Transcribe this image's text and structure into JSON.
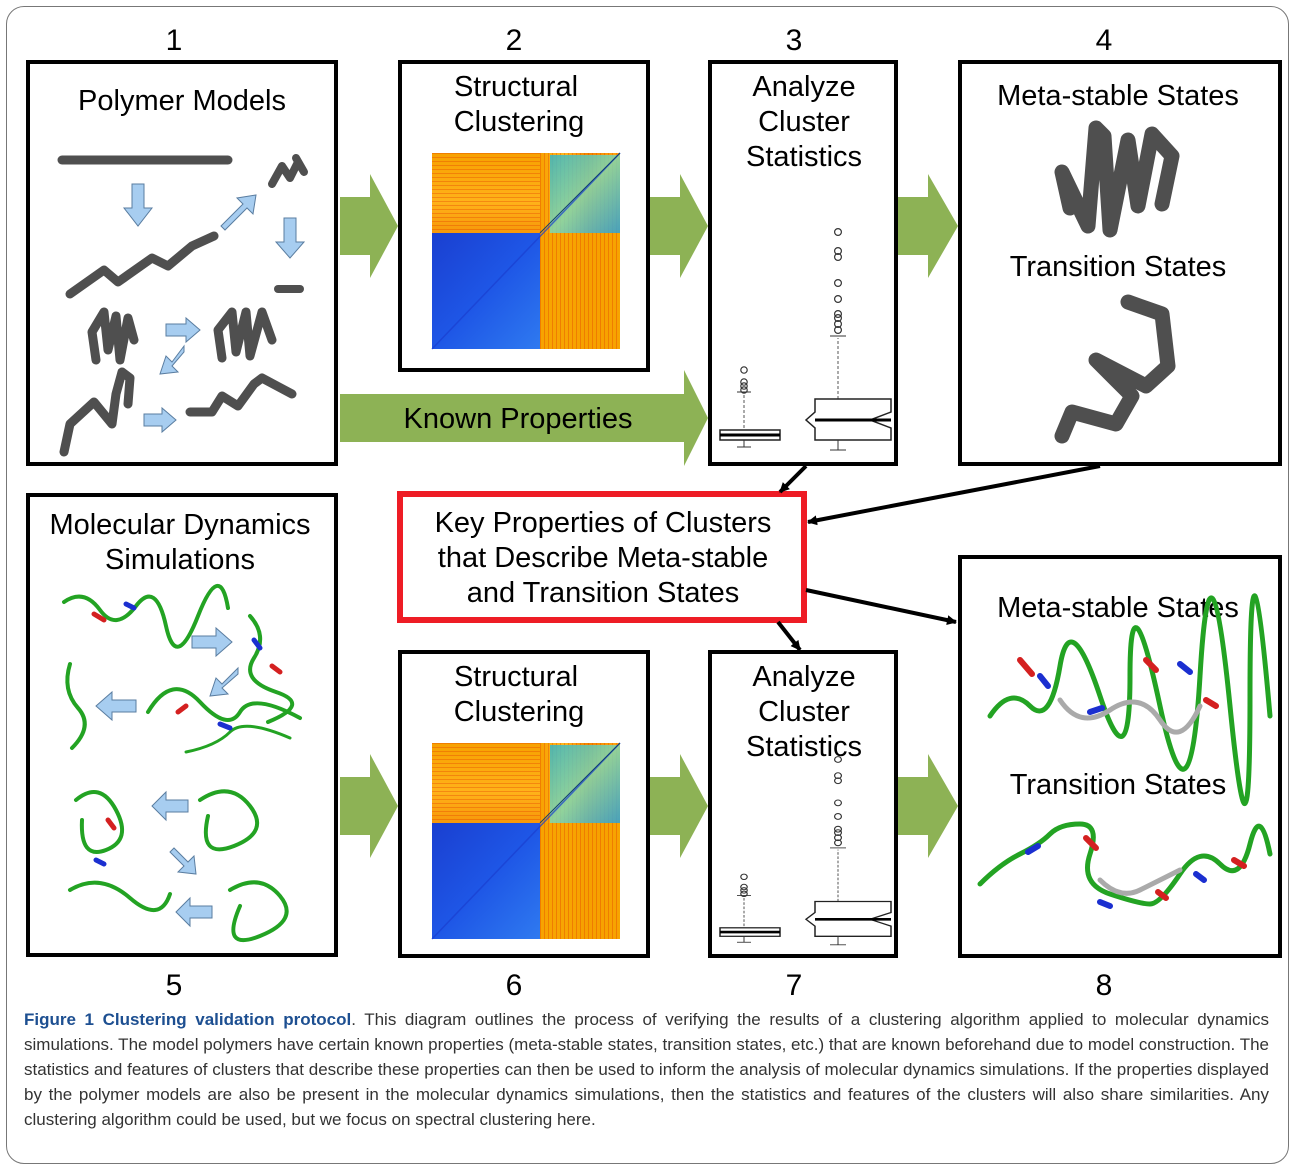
{
  "colors": {
    "green_arrow": "#8db255",
    "highlight_border": "#ee1c25",
    "blue_arrow": "#a7cdf0",
    "tube": "#4f4f4f",
    "caption_bold": "#1d4f91",
    "caption_text": "#333333"
  },
  "steps": [
    {
      "number": "1",
      "title_lines": [
        "Polymer Models"
      ]
    },
    {
      "number": "2",
      "title_lines": [
        "Structural",
        "Clustering"
      ]
    },
    {
      "number": "3",
      "title_lines": [
        "Analyze",
        "Cluster",
        "Statistics"
      ]
    },
    {
      "number": "4",
      "labels": [
        "Meta-stable States",
        "Transition States"
      ]
    },
    {
      "number": "5",
      "title_lines": [
        "Molecular Dynamics",
        "Simulations"
      ]
    },
    {
      "number": "6",
      "title_lines": [
        "Structural",
        "Clustering"
      ]
    },
    {
      "number": "7",
      "title_lines": [
        "Analyze",
        "Cluster",
        "Statistics"
      ]
    },
    {
      "number": "8",
      "labels": [
        "Meta-stable States",
        "Transition States"
      ]
    }
  ],
  "known_properties_label": "Known Properties",
  "key_box_lines": [
    "Key Properties of Clusters",
    "that Describe Meta-stable",
    "and Transition States"
  ],
  "caption": {
    "title": "Figure 1 Clustering validation protocol",
    "text": ". This diagram outlines the process of verifying the results of a clustering algorithm applied to molecular dynamics simulations. The model polymers have certain known properties (meta-stable states, transition states, etc.) that are known beforehand due to model construction. The statistics and features of clusters that describe these properties can then be used to inform the analysis of molecular dynamics simulations. If the properties displayed by the polymer models are also be present in the molecular dynamics simulations, then the statistics and features of the clusters will also share similarities. Any clustering algorithm could be used, but we focus on spectral clustering here."
  }
}
